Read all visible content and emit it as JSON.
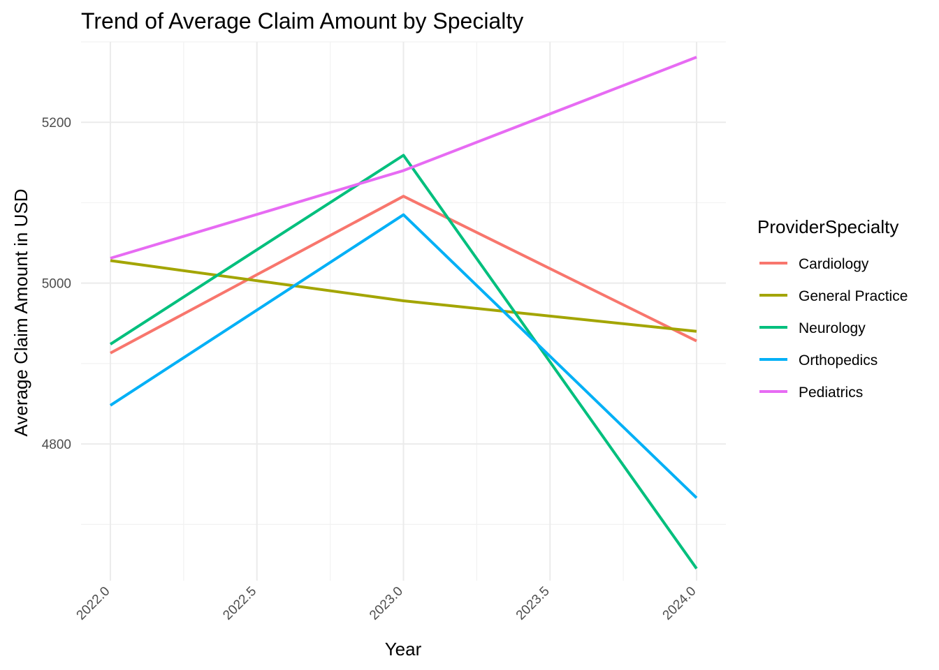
{
  "chart_data": {
    "type": "line",
    "title": "Trend of Average Claim Amount by Specialty",
    "xlabel": "Year",
    "ylabel": "Average Claim Amount in USD",
    "x": [
      2022,
      2023,
      2024
    ],
    "xlim": [
      2021.9,
      2024.1
    ],
    "ylim": [
      4630,
      5300
    ],
    "x_major_ticks": [
      2022.0,
      2022.5,
      2023.0,
      2023.5,
      2024.0
    ],
    "x_tick_labels": [
      "2022.0",
      "2022.5",
      "2023.0",
      "2023.5",
      "2024.0"
    ],
    "x_minor_ticks": [
      2022.25,
      2022.75,
      2023.25,
      2023.75
    ],
    "y_major_ticks": [
      4800,
      5000,
      5200
    ],
    "y_tick_labels": [
      "4800",
      "5000",
      "5200"
    ],
    "y_minor_ticks": [
      4700,
      4900,
      5100,
      5300
    ],
    "grid": true,
    "legend_position": "right",
    "legend_title": "ProviderSpecialty",
    "series": [
      {
        "name": "Cardiology",
        "color": "#F8766D",
        "values": [
          4913,
          5108,
          4928
        ]
      },
      {
        "name": "General Practice",
        "color": "#A3A500",
        "values": [
          5028,
          4978,
          4940
        ]
      },
      {
        "name": "Neurology",
        "color": "#00BF7D",
        "values": [
          4924,
          5159,
          4645
        ]
      },
      {
        "name": "Orthopedics",
        "color": "#00B0F6",
        "values": [
          4848,
          5085,
          4733
        ]
      },
      {
        "name": "Pediatrics",
        "color": "#E76BF3",
        "values": [
          5031,
          5140,
          5281
        ]
      }
    ]
  }
}
